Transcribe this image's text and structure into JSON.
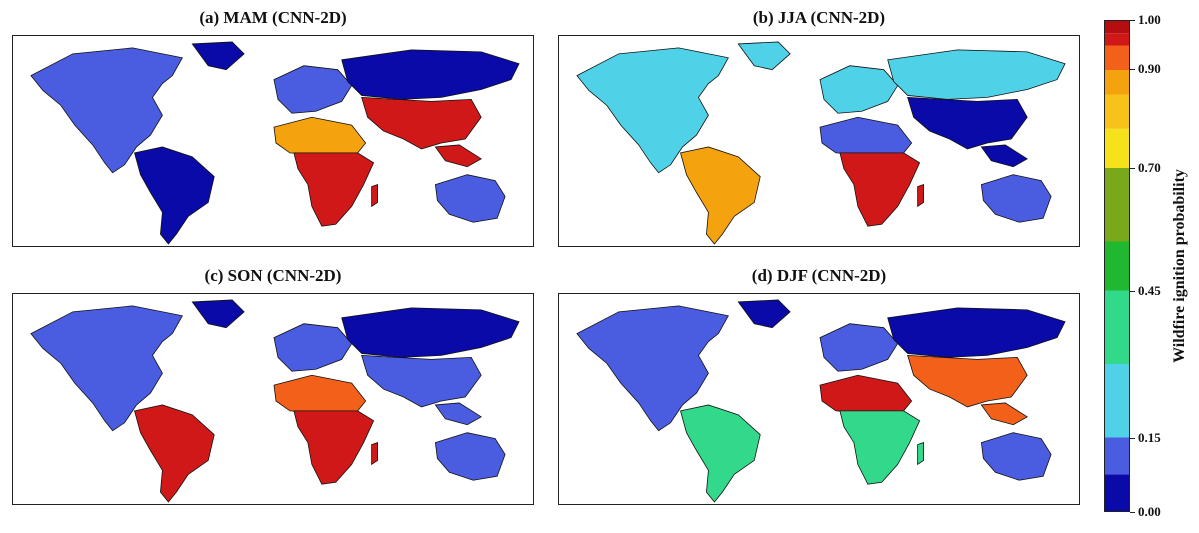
{
  "panels": [
    {
      "title": "(a) MAM (CNN-2D)",
      "season": "MAM"
    },
    {
      "title": "(b) JJA (CNN-2D)",
      "season": "JJA"
    },
    {
      "title": "(c) SON (CNN-2D)",
      "season": "SON"
    },
    {
      "title": "(d) DJF (CNN-2D)",
      "season": "DJF"
    }
  ],
  "colorbar": {
    "label": "Wildfire ignition probability",
    "ticks": [
      "1.00",
      "0.90",
      "0.70",
      "0.45",
      "0.15",
      "0.00"
    ],
    "tick_values": [
      1.0,
      0.9,
      0.7,
      0.45,
      0.15,
      0.0
    ],
    "colors": [
      "#0a0aa8",
      "#4a5de0",
      "#4fd2e8",
      "#33d98a",
      "#20b830",
      "#79a81a",
      "#f5e21a",
      "#f7c21a",
      "#f5a20f",
      "#f2601a",
      "#d01818",
      "#b40e10"
    ],
    "boundaries": [
      0.0,
      0.075,
      0.15,
      0.3,
      0.45,
      0.55,
      0.7,
      0.78,
      0.85,
      0.9,
      0.95,
      0.975,
      1.0
    ]
  },
  "seasons": {
    "MAM": {
      "north_america": "#4a5de0",
      "south_america": "#0a0aa8",
      "africa_south": "#d01818",
      "africa_sahel": "#f5a20f",
      "europe": "#4a5de0",
      "south_asia": "#d01818",
      "australia": "#4a5de0",
      "siberia": "#0a0aa8"
    },
    "JJA": {
      "north_america": "#4fd2e8",
      "south_america": "#f5a20f",
      "africa_south": "#d01818",
      "africa_sahel": "#4a5de0",
      "europe": "#4fd2e8",
      "south_asia": "#0a0aa8",
      "australia": "#4a5de0",
      "siberia": "#4fd2e8"
    },
    "SON": {
      "north_america": "#4a5de0",
      "south_america": "#d01818",
      "africa_south": "#d01818",
      "africa_sahel": "#f2601a",
      "europe": "#4a5de0",
      "south_asia": "#4a5de0",
      "australia": "#4a5de0",
      "siberia": "#0a0aa8"
    },
    "DJF": {
      "north_america": "#4a5de0",
      "south_america": "#33d98a",
      "africa_south": "#33d98a",
      "africa_sahel": "#d01818",
      "europe": "#4a5de0",
      "south_asia": "#f2601a",
      "australia": "#4a5de0",
      "siberia": "#0a0aa8"
    }
  }
}
